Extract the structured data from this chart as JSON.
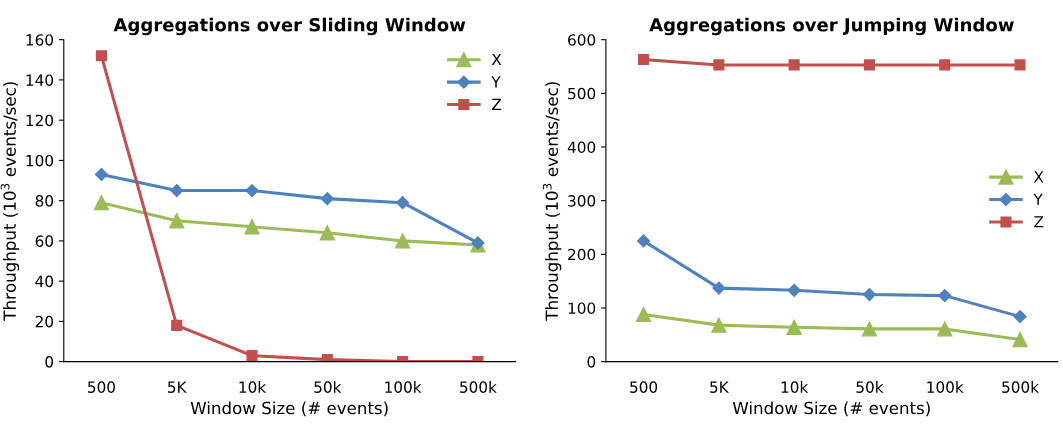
{
  "chart_data": [
    {
      "type": "line",
      "title": "Aggregations over Sliding Window",
      "xlabel": "Window Size (# events)",
      "ylabel": "Throughput (10$^{3}$ events/sec)",
      "categories": [
        "500",
        "5K",
        "10k",
        "50k",
        "100k",
        "500k"
      ],
      "ylim": [
        0,
        160
      ],
      "yticks": [
        0,
        20,
        40,
        60,
        80,
        100,
        120,
        140,
        160
      ],
      "grid": false,
      "legend": "top right",
      "series": [
        {
          "name": "X",
          "color": "#9bbb59",
          "marker": "triangle",
          "values": [
            79,
            70,
            67,
            64,
            60,
            58
          ]
        },
        {
          "name": "Y",
          "color": "#4f81bd",
          "marker": "diamond",
          "values": [
            93,
            85,
            85,
            81,
            79,
            59
          ]
        },
        {
          "name": "Z",
          "color": "#c0504d",
          "marker": "square",
          "values": [
            152,
            18,
            3,
            1,
            0,
            0
          ]
        }
      ]
    },
    {
      "type": "line",
      "title": "Aggregations over Jumping Window",
      "xlabel": "Window Size (# events)",
      "ylabel": "Throughput (10$^{3}$ events/sec)",
      "categories": [
        "500",
        "5K",
        "10k",
        "50k",
        "100k",
        "500k"
      ],
      "ylim": [
        0,
        600
      ],
      "yticks": [
        0,
        100,
        200,
        300,
        400,
        500,
        600
      ],
      "grid": false,
      "legend": "right",
      "series": [
        {
          "name": "X",
          "color": "#9bbb59",
          "marker": "triangle",
          "values": [
            88,
            68,
            64,
            61,
            61,
            41
          ]
        },
        {
          "name": "Y",
          "color": "#4f81bd",
          "marker": "diamond",
          "values": [
            225,
            137,
            133,
            125,
            123,
            84
          ]
        },
        {
          "name": "Z",
          "color": "#c0504d",
          "marker": "square",
          "values": [
            563,
            553,
            553,
            553,
            553,
            553
          ]
        }
      ]
    }
  ]
}
